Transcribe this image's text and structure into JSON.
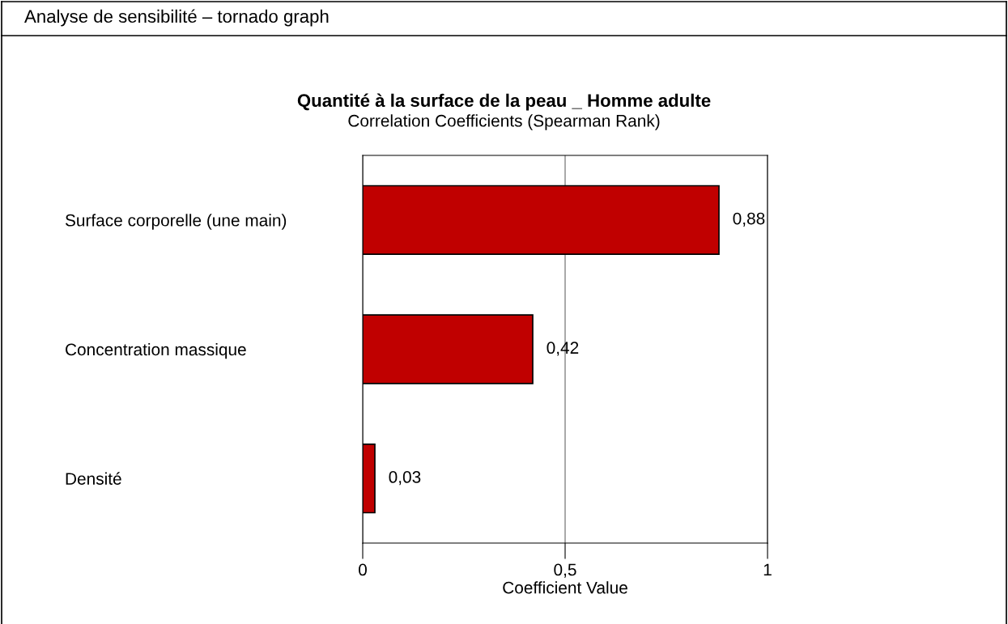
{
  "chart_data": {
    "type": "bar",
    "orientation": "horizontal",
    "title": "Quantité à la surface de la peau _ Homme adulte",
    "subtitle": "Correlation Coefficients (Spearman Rank)",
    "xlabel": "Coefficient Value",
    "annotations": [
      "Analyse de sensibilité – tornado graph"
    ],
    "categories": [
      "Surface corporelle (une main)",
      "Concentration massique",
      "Densité"
    ],
    "values": [
      0.88,
      0.42,
      0.03
    ],
    "value_labels": [
      "0,88",
      "0,42",
      "0,03"
    ],
    "color": "#c00000",
    "xlim": [
      0,
      1
    ],
    "xticks": [
      0,
      {
        "value": 0.5,
        "label": "0,5"
      },
      1
    ],
    "grid": "x"
  }
}
